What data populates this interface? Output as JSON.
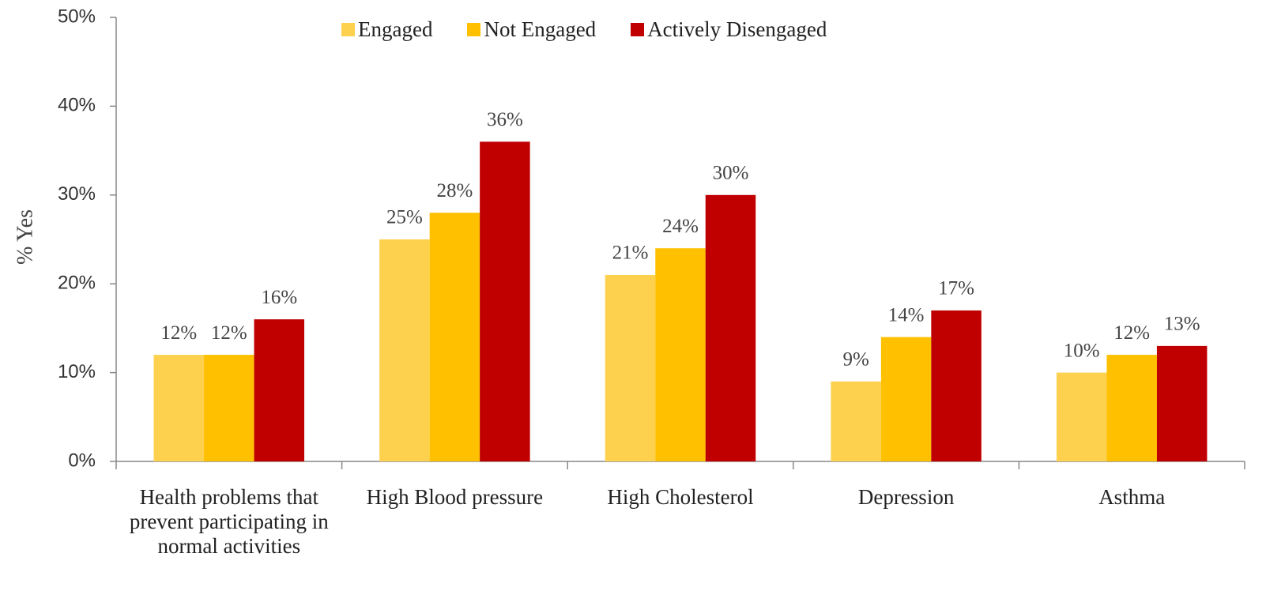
{
  "chart_data": {
    "type": "bar",
    "y_label": "% Yes",
    "categories": [
      "Health problems that prevent participating in normal activities",
      "High Blood pressure",
      "High Cholesterol",
      "Depression",
      "Asthma"
    ],
    "series": [
      {
        "name": "Engaged",
        "color": "#FDD14E",
        "values": [
          12,
          25,
          21,
          9,
          10
        ],
        "value_labels": [
          "12%",
          "25%",
          "21%",
          "9%",
          "10%"
        ]
      },
      {
        "name": "Not Engaged",
        "color": "#FFC000",
        "values": [
          12,
          28,
          24,
          14,
          12
        ],
        "value_labels": [
          "12%",
          "28%",
          "24%",
          "14%",
          "12%"
        ]
      },
      {
        "name": "Actively Disengaged",
        "color": "#C00000",
        "values": [
          16,
          36,
          30,
          17,
          13
        ],
        "value_labels": [
          "16%",
          "36%",
          "30%",
          "17%",
          "13%"
        ]
      }
    ],
    "ylim": [
      0,
      50
    ],
    "yticks": [
      {
        "value": 0,
        "label": "0%"
      },
      {
        "value": 10,
        "label": "10%"
      },
      {
        "value": 20,
        "label": "20%"
      },
      {
        "value": 30,
        "label": "30%"
      },
      {
        "value": 40,
        "label": "40%"
      },
      {
        "value": 50,
        "label": "50%"
      }
    ],
    "grid": false,
    "legend": "top"
  }
}
